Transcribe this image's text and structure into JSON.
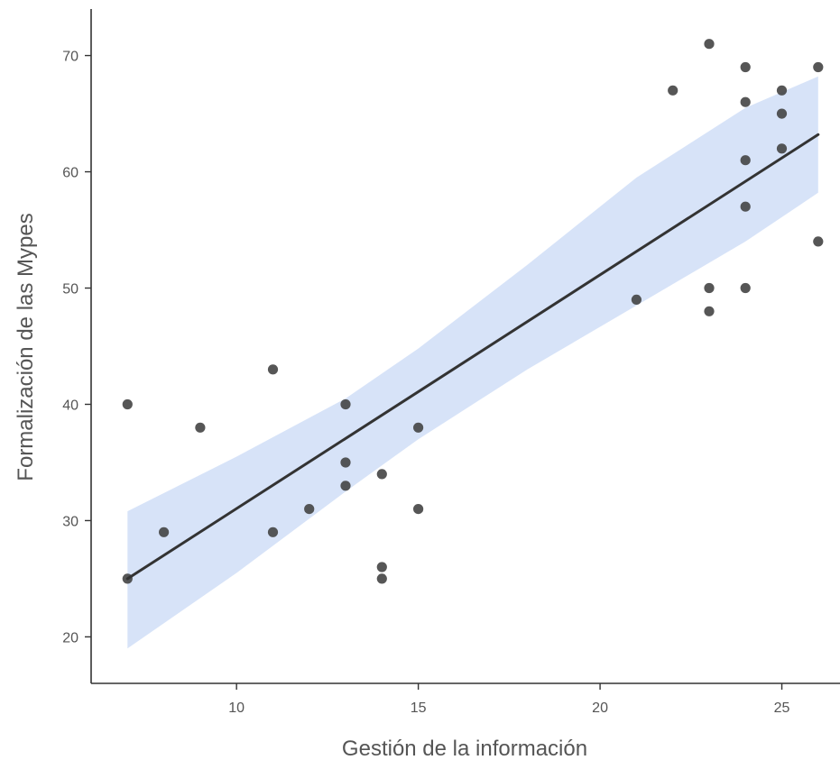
{
  "chart_data": {
    "type": "scatter",
    "xlabel": "Gestión de la información",
    "ylabel": "Formalización de las Mypes",
    "xlim": [
      6,
      26.6
    ],
    "ylim": [
      16,
      74
    ],
    "xticks": [
      10,
      15,
      20,
      25
    ],
    "yticks": [
      20,
      30,
      40,
      50,
      60,
      70
    ],
    "grid": false,
    "colors": {
      "points": "#444444",
      "line": "#333333",
      "band": "#c9d9f5"
    },
    "points": [
      {
        "x": 7,
        "y": 40
      },
      {
        "x": 7,
        "y": 25
      },
      {
        "x": 8,
        "y": 29
      },
      {
        "x": 9,
        "y": 38
      },
      {
        "x": 11,
        "y": 43
      },
      {
        "x": 11,
        "y": 29
      },
      {
        "x": 12,
        "y": 31
      },
      {
        "x": 13,
        "y": 40
      },
      {
        "x": 13,
        "y": 35
      },
      {
        "x": 13,
        "y": 33
      },
      {
        "x": 14,
        "y": 34
      },
      {
        "x": 14,
        "y": 26
      },
      {
        "x": 14,
        "y": 25
      },
      {
        "x": 15,
        "y": 38
      },
      {
        "x": 15,
        "y": 31
      },
      {
        "x": 21,
        "y": 49
      },
      {
        "x": 22,
        "y": 67
      },
      {
        "x": 23,
        "y": 71
      },
      {
        "x": 23,
        "y": 50
      },
      {
        "x": 23,
        "y": 48
      },
      {
        "x": 24,
        "y": 69
      },
      {
        "x": 24,
        "y": 66
      },
      {
        "x": 24,
        "y": 61
      },
      {
        "x": 24,
        "y": 57
      },
      {
        "x": 24,
        "y": 50
      },
      {
        "x": 25,
        "y": 67
      },
      {
        "x": 25,
        "y": 65
      },
      {
        "x": 25,
        "y": 62
      },
      {
        "x": 26,
        "y": 69
      },
      {
        "x": 26,
        "y": 54
      }
    ],
    "fit_line": {
      "x": [
        7,
        26
      ],
      "y": [
        25,
        63.2
      ]
    },
    "confidence_band": {
      "x": [
        7,
        10,
        13,
        15,
        18,
        21,
        24,
        26
      ],
      "lower": [
        19,
        25.5,
        32.5,
        37,
        43,
        48.5,
        54,
        58.2
      ],
      "upper": [
        30.8,
        35.5,
        40.5,
        44.8,
        52,
        59.5,
        65.5,
        68.2
      ]
    }
  }
}
